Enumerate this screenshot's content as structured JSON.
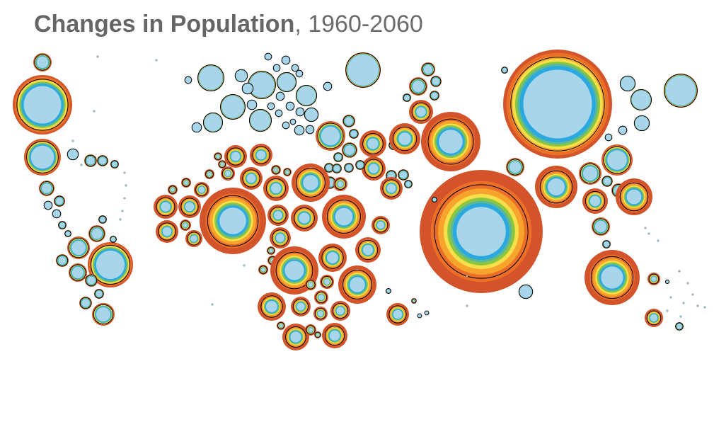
{
  "title": {
    "bold": "Changes in Population",
    "rest": ", 1960-2060"
  },
  "legend_colors": {
    "1960": "#a8d5ea",
    "1980": "#29a9e0",
    "2000": "#5ab89a",
    "2020": "#8cc63f",
    "2030": "#f5e04a",
    "2040": "#f7a42c",
    "2050": "#ec6f27",
    "2060": "#d3542a",
    "outline": "#000000"
  }
}
